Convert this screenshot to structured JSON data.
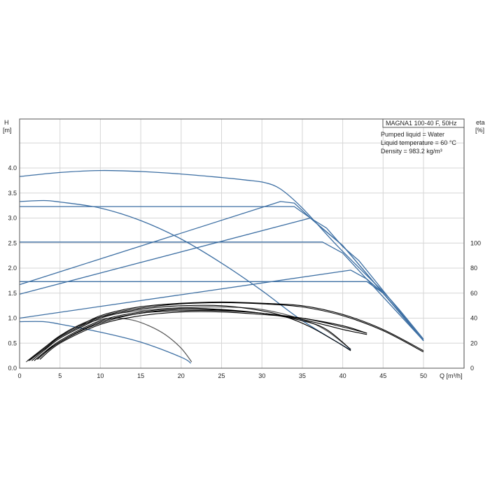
{
  "chart_data": {
    "type": "line",
    "title": "MAGNA1 100-40 F, 50Hz",
    "info_lines": [
      "Pumped liquid = Water",
      "Liquid temperature = 60 °C",
      "Density = 983.2 kg/m³"
    ],
    "xlabel": "Q [m³/h]",
    "ylabel_left": [
      "H",
      "[m]"
    ],
    "ylabel_right": [
      "eta",
      "[%]"
    ],
    "xlim": [
      0,
      55
    ],
    "ylim_left": [
      0,
      4.8
    ],
    "ylim_right": [
      0,
      100
    ],
    "x_ticks": [
      0,
      5,
      10,
      15,
      20,
      25,
      30,
      35,
      40,
      45,
      50
    ],
    "y_left_ticks": [
      "0.0",
      "0.5",
      "1.0",
      "1.5",
      "2.0",
      "2.5",
      "3.0",
      "3.5",
      "4.0"
    ],
    "y_right_ticks": [
      "0",
      "20",
      "40",
      "60",
      "80",
      "100"
    ],
    "grid": true,
    "colors": {
      "head": "#3d6fa3",
      "efficiency": "#000000",
      "efficiency_min": "#555555",
      "grid": "#d6d6d6"
    },
    "head_curves": [
      {
        "style": "max-curve",
        "x": [
          0,
          5,
          10,
          15,
          20,
          25,
          28,
          30.3,
          32.3,
          35,
          39,
          43,
          45,
          47,
          50
        ],
        "y": [
          3.83,
          3.91,
          3.95,
          3.93,
          3.88,
          3.81,
          3.76,
          3.71,
          3.58,
          3.2,
          2.5,
          1.85,
          1.53,
          1.17,
          0.58
        ]
      },
      {
        "style": "constant-pressure",
        "x": [
          0,
          34,
          36,
          40,
          50
        ],
        "y": [
          3.23,
          3.23,
          3.0,
          2.45,
          0.55
        ]
      },
      {
        "style": "constant-pressure",
        "x": [
          0,
          37.5,
          40,
          50
        ],
        "y": [
          2.52,
          2.52,
          2.3,
          0.55
        ]
      },
      {
        "style": "constant-pressure",
        "x": [
          0,
          43,
          45,
          50
        ],
        "y": [
          1.73,
          1.73,
          1.5,
          0.55
        ]
      },
      {
        "style": "proportional-pressure",
        "x": [
          0,
          32.3,
          34,
          36,
          38,
          40,
          42,
          44,
          50
        ],
        "y": [
          1.67,
          3.33,
          3.3,
          3.0,
          2.8,
          2.43,
          2.15,
          1.75,
          0.55
        ]
      },
      {
        "style": "proportional-pressure",
        "x": [
          0,
          36,
          38,
          40,
          50
        ],
        "y": [
          1.48,
          3.0,
          2.72,
          2.45,
          0.55
        ]
      },
      {
        "style": "proportional-pressure",
        "x": [
          0,
          41,
          43,
          45,
          50
        ],
        "y": [
          1.0,
          1.96,
          1.78,
          1.5,
          0.55
        ]
      },
      {
        "style": "constant-curve",
        "x": [
          0,
          3,
          5,
          10,
          15,
          20,
          25,
          30,
          35,
          41
        ],
        "y": [
          3.33,
          3.35,
          3.32,
          3.2,
          2.95,
          2.58,
          2.1,
          1.55,
          0.95,
          0.36
        ]
      },
      {
        "style": "min-curve",
        "x": [
          0,
          3,
          5,
          10,
          15,
          20,
          21.2
        ],
        "y": [
          0.93,
          0.93,
          0.88,
          0.72,
          0.52,
          0.22,
          0.1
        ]
      }
    ],
    "efficiency_curves": [
      {
        "x": [
          1,
          3,
          5,
          8,
          10,
          13,
          16,
          20,
          25,
          30,
          35,
          40,
          45,
          50
        ],
        "y": [
          6,
          16,
          26,
          36,
          42,
          47,
          50,
          52,
          53,
          52,
          50,
          43,
          31,
          14
        ]
      },
      {
        "x": [
          1.2,
          3,
          5,
          8,
          10,
          13,
          16,
          20,
          25,
          30,
          35,
          40,
          45,
          50
        ],
        "y": [
          6,
          15,
          25,
          35,
          41,
          46,
          49,
          51.5,
          52.5,
          51.5,
          49,
          42,
          30,
          13
        ]
      },
      {
        "x": [
          1.5,
          3,
          5,
          8,
          10,
          13,
          16,
          20,
          25,
          30,
          33,
          36,
          39,
          41
        ],
        "y": [
          6,
          14,
          24,
          34,
          40,
          45,
          48,
          50,
          50,
          46,
          41,
          33,
          22,
          14
        ]
      },
      {
        "x": [
          1.8,
          4,
          8,
          12,
          16,
          20,
          25,
          30,
          35,
          38,
          41
        ],
        "y": [
          6,
          17,
          31,
          40,
          45,
          47,
          46.5,
          44,
          38,
          31,
          15
        ]
      },
      {
        "x": [
          2,
          5,
          10,
          15,
          20,
          25,
          30,
          35,
          40,
          43
        ],
        "y": [
          7,
          22,
          38,
          45,
          48,
          47,
          44,
          39,
          31,
          27
        ]
      },
      {
        "x": [
          2.2,
          5,
          10,
          15,
          20,
          25,
          30,
          35,
          40,
          43
        ],
        "y": [
          7,
          21,
          37,
          44,
          46,
          46,
          44,
          40,
          34,
          28
        ]
      },
      {
        "x": [
          2.5,
          5,
          10,
          15,
          20,
          25,
          30,
          35,
          40,
          43
        ],
        "y": [
          7,
          20,
          35,
          42,
          45,
          45,
          43,
          40,
          33,
          28
        ]
      }
    ],
    "efficiency_min_curves": [
      {
        "x": [
          1,
          4,
          7,
          10,
          12,
          14,
          16,
          18,
          20,
          21.3
        ],
        "y": [
          6,
          21,
          33,
          39,
          40,
          38.5,
          34,
          27,
          16,
          5
        ]
      },
      {
        "x": [
          0.8,
          3,
          6,
          10,
          15,
          20,
          25,
          30,
          35,
          38,
          41
        ],
        "y": [
          5,
          15,
          30,
          41,
          46,
          48.5,
          49,
          47,
          39,
          30,
          15
        ]
      }
    ]
  }
}
